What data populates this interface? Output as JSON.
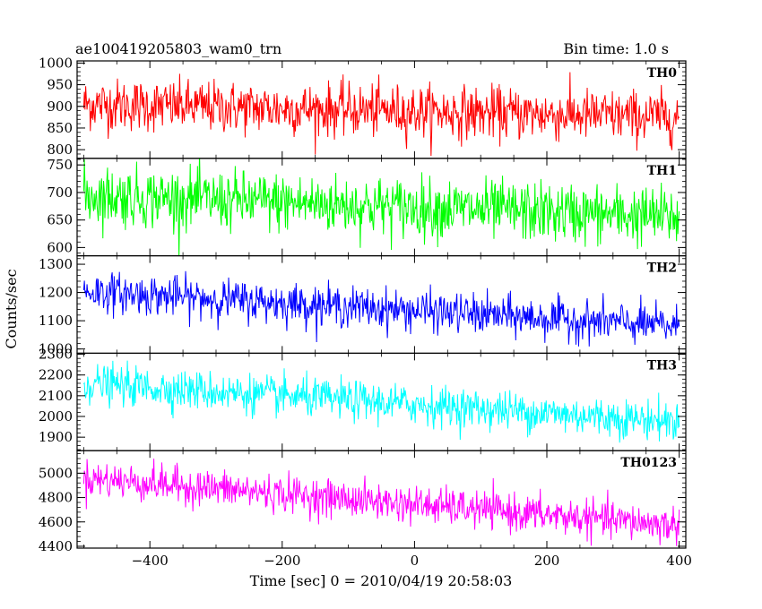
{
  "header": {
    "title": "ae100419205803_wam0_trn",
    "bin_time": "Bin time: 1.0 s"
  },
  "chart_data": {
    "type": "line",
    "title": "ae100419205803_wam0_trn",
    "subtitle": "Bin time: 1.0 s",
    "xlabel": "Time [sec] 0 = 2010/04/19 20:58:03",
    "ylabel": "Counts/sec",
    "xlim": [
      -510,
      410
    ],
    "x_ticks": [
      -400,
      -200,
      0,
      200,
      400
    ],
    "x_start": -500,
    "x_end": 400,
    "x_step": 1,
    "panels": [
      {
        "name": "TH0",
        "color": "#ff0000",
        "ylim": [
          780,
          1005
        ],
        "y_ticks": [
          800,
          850,
          900,
          950,
          1000
        ],
        "trend_start": 905,
        "trend_end": 875,
        "noise_sd": 30
      },
      {
        "name": "TH1",
        "color": "#00ff00",
        "ylim": [
          585,
          762
        ],
        "y_ticks": [
          600,
          650,
          700,
          750
        ],
        "trend_start": 695,
        "trend_end": 655,
        "noise_sd": 27
      },
      {
        "name": "TH2",
        "color": "#0000ff",
        "ylim": [
          985,
          1330
        ],
        "y_ticks": [
          1000,
          1100,
          1200,
          1300
        ],
        "trend_start": 1205,
        "trend_end": 1080,
        "noise_sd": 35
      },
      {
        "name": "TH3",
        "color": "#00ffff",
        "ylim": [
          1835,
          2305
        ],
        "y_ticks": [
          1900,
          2000,
          2100,
          2200,
          2300
        ],
        "trend_start": 2160,
        "trend_end": 1975,
        "noise_sd": 47
      },
      {
        "name": "TH0123",
        "color": "#ff00ff",
        "ylim": [
          4385,
          5185
        ],
        "y_ticks": [
          4400,
          4600,
          4800,
          5000
        ],
        "trend_start": 4960,
        "trend_end": 4570,
        "noise_sd": 75
      }
    ]
  }
}
